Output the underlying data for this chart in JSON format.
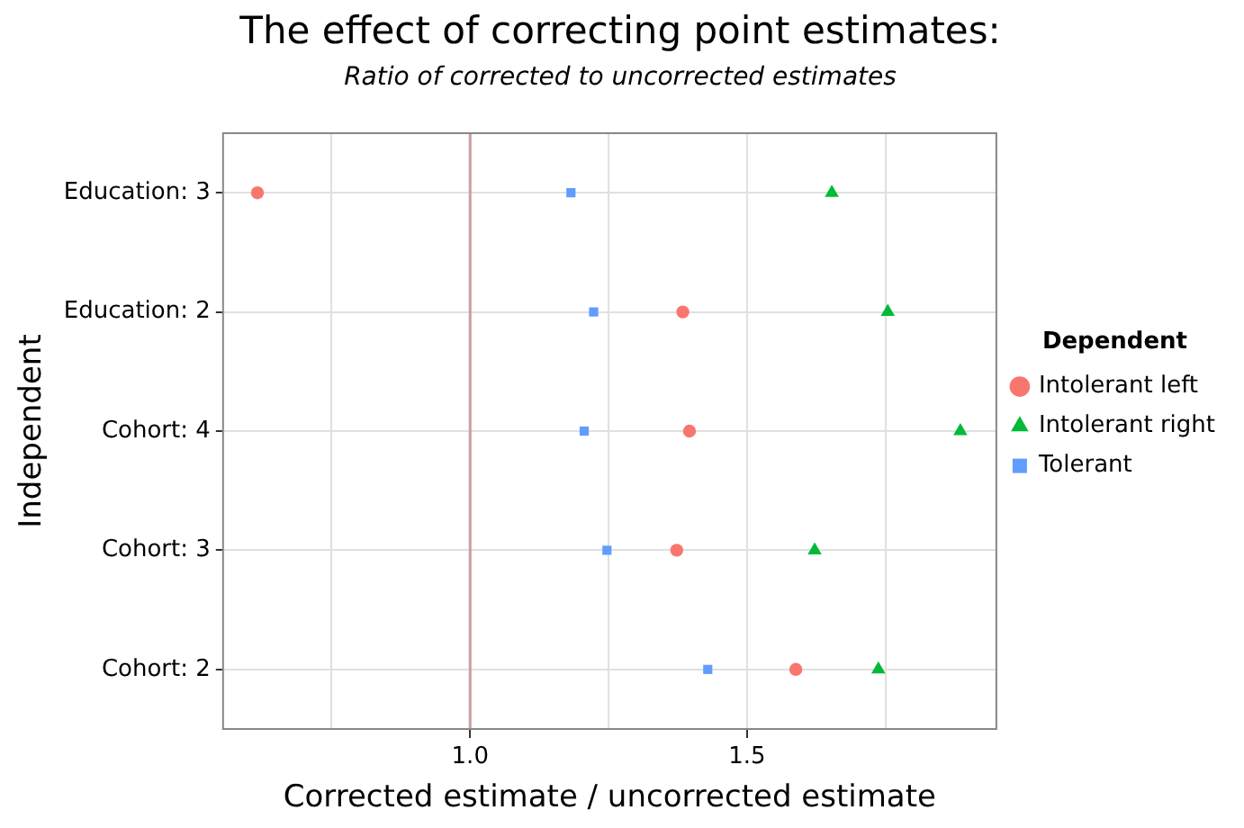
{
  "chart_data": {
    "type": "scatter",
    "orientation": "horizontal",
    "title": "The effect of correcting point estimates:",
    "subtitle": "Ratio of corrected to uncorrected estimates",
    "xlabel": "Corrected estimate / uncorrected estimate",
    "ylabel": "Independent",
    "legend_title": "Dependent",
    "categories": [
      "Education: 3",
      "Education: 2",
      "Cohort: 4",
      "Cohort: 3",
      "Cohort: 2"
    ],
    "series": [
      {
        "name": "Intolerant left",
        "color": "#f8766d",
        "marker": "circle",
        "values": [
          0.616,
          1.384,
          1.396,
          1.373,
          1.588
        ]
      },
      {
        "name": "Intolerant right",
        "color": "#00ba38",
        "marker": "triangle",
        "values": [
          1.653,
          1.754,
          1.885,
          1.622,
          1.737
        ]
      },
      {
        "name": "Tolerant",
        "color": "#619cff",
        "marker": "square",
        "values": [
          1.182,
          1.223,
          1.206,
          1.247,
          1.429
        ]
      }
    ],
    "xlim": [
      0.554,
      1.95
    ],
    "xticks": [
      {
        "value": 0.75,
        "label": null
      },
      {
        "value": 1.0,
        "label": "1.0"
      },
      {
        "value": 1.25,
        "label": null
      },
      {
        "value": 1.5,
        "label": "1.5"
      },
      {
        "value": 1.75,
        "label": null
      }
    ],
    "ref_lines": [
      {
        "axis": "x",
        "value": 1.0,
        "color": "#c9a09d"
      }
    ],
    "grid": true,
    "legend": "right"
  }
}
